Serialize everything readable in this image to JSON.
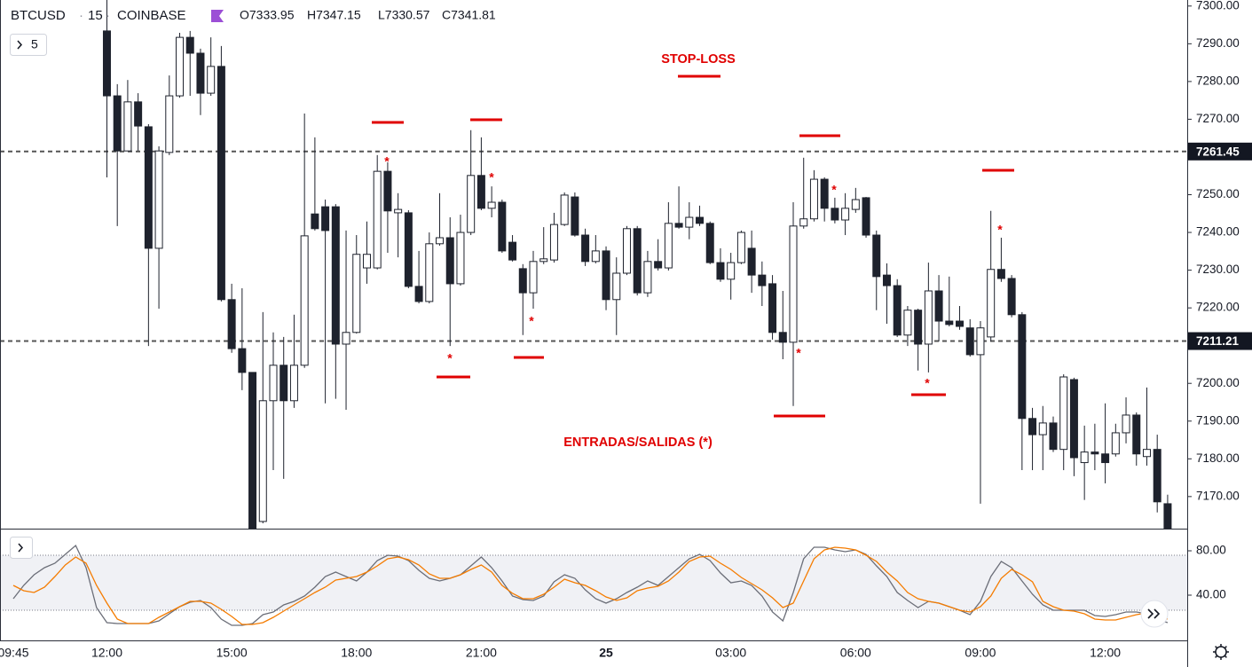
{
  "chart_data": [
    {
      "type": "candlestick",
      "symbol": "BTCUSD",
      "interval": "15",
      "exchange": "COINBASE",
      "ohlc_legend": [
        "O7333.95",
        "H7347.15",
        "L7330.57",
        "C7341.81"
      ],
      "indicator_count": "5",
      "annotations": [
        "STOP-LOSS",
        "ENTRADAS/SALIDAS (*)"
      ],
      "marker_symbol": "*",
      "up_color": "#ffffff",
      "down_color": "#1e222d",
      "annotation_color": "#e00000",
      "categories": [
        "09:45",
        null,
        null,
        null,
        null,
        null,
        null,
        null,
        null,
        "12:00",
        null,
        null,
        null,
        null,
        null,
        null,
        null,
        null,
        null,
        null,
        null,
        "15:00",
        null,
        null,
        null,
        null,
        null,
        null,
        null,
        null,
        null,
        null,
        null,
        "18:00",
        null,
        null,
        null,
        null,
        null,
        null,
        null,
        null,
        null,
        null,
        null,
        "21:00",
        null,
        null,
        null,
        null,
        null,
        null,
        null,
        null,
        null,
        null,
        null,
        "25",
        null,
        null,
        null,
        null,
        null,
        null,
        null,
        null,
        null,
        null,
        null,
        "03:00",
        null,
        null,
        null,
        null,
        null,
        null,
        null,
        null,
        null,
        null,
        null,
        "06:00",
        null,
        null,
        null,
        null,
        null,
        null,
        null,
        null,
        null,
        null,
        null,
        "09:00",
        null,
        null,
        null,
        null,
        null,
        null,
        null,
        null,
        null,
        null,
        null,
        "12:00",
        null,
        null,
        null,
        null,
        null,
        null
      ],
      "open": [
        null,
        null,
        null,
        null,
        null,
        null,
        null,
        null,
        null,
        7293.4,
        7276.2,
        7261.6,
        7274.6,
        7268.0,
        7235.8,
        7261.2,
        7276.2,
        7291.7,
        7287.5,
        7276.9,
        7284.0,
        7222.2,
        7209.2,
        7202.9,
        7163.4,
        7195.4,
        7204.8,
        7195.4,
        7204.8,
        7244.9,
        7246.8,
        7246.8,
        7210.4,
        7213.5,
        7230.6,
        7230.6,
        7256.2,
        7245.2,
        7245.2,
        7225.7,
        7221.7,
        7237.0,
        7238.6,
        7226.4,
        7240.0,
        7255.1,
        7246.4,
        7248.0,
        7237.4,
        7230.4,
        7224.0,
        7232.3,
        7232.7,
        7242.1,
        7249.4,
        7239.3,
        7232.3,
        7235.1,
        7222.2,
        7229.2,
        7241.0,
        7224.0,
        7232.3,
        7230.6,
        7242.4,
        7241.4,
        7244.0,
        7242.4,
        7232.0,
        7227.6,
        7232.0,
        7235.8,
        7228.7,
        7226.4,
        7213.5,
        7210.9,
        7241.7,
        7243.6,
        7254.1,
        7246.4,
        7243.3,
        7246.1,
        7249.2,
        7239.3,
        7228.7,
        7225.9,
        7212.8,
        7219.4,
        7210.4,
        7224.5,
        7216.5,
        7216.5,
        7214.7,
        7207.6,
        7212.3,
        7230.2,
        7227.8,
        7218.2,
        7190.7,
        7186.4,
        7189.5,
        7182.5,
        7201.0,
        7179.0,
        7181.8,
        7181.3,
        7181.3,
        7186.9,
        7191.6,
        7180.6,
        7182.5,
        7168.1
      ],
      "high": [
        null,
        null,
        null,
        null,
        null,
        null,
        null,
        null,
        null,
        7301.6,
        7279.3,
        7280.4,
        7276.9,
        7268.7,
        7262.8,
        7281.6,
        7292.9,
        7293.4,
        7288.7,
        7291.7,
        7289.4,
        7226.4,
        7225.2,
        7202.9,
        7218.9,
        7213.5,
        7212.3,
        7218.2,
        7271.5,
        7265.2,
        7248.7,
        7247.5,
        7240.5,
        7239.3,
        7242.9,
        7260.5,
        7258.6,
        7250.4,
        7245.9,
        7235.1,
        7240.0,
        7250.4,
        7244.0,
        7244.7,
        7267.1,
        7265.2,
        7252.2,
        7248.7,
        7239.3,
        7231.6,
        7235.1,
        7241.4,
        7245.2,
        7250.6,
        7250.6,
        7241.0,
        7239.3,
        7236.3,
        7233.4,
        7241.7,
        7241.7,
        7235.1,
        7238.2,
        7248.0,
        7252.2,
        7248.0,
        7247.1,
        7242.9,
        7235.8,
        7234.6,
        7240.5,
        7240.5,
        7232.3,
        7228.7,
        7224.5,
        7248.0,
        7259.8,
        7256.5,
        7254.6,
        7249.2,
        7250.4,
        7251.8,
        7249.4,
        7240.5,
        7231.8,
        7227.6,
        7220.5,
        7219.8,
        7232.0,
        7228.7,
        7228.3,
        7220.5,
        7217.0,
        7216.5,
        7245.7,
        7238.6,
        7228.7,
        7218.9,
        7193.5,
        7194.0,
        7191.2,
        7202.4,
        7201.5,
        7188.8,
        7189.3,
        7194.7,
        7189.3,
        7196.3,
        7192.3,
        7198.9,
        7186.4,
        7170.5
      ],
      "low": [
        null,
        null,
        null,
        null,
        null,
        null,
        null,
        null,
        null,
        7254.6,
        7241.7,
        7261.6,
        7261.6,
        7209.9,
        7219.8,
        7260.5,
        7275.7,
        7276.2,
        7271.1,
        7276.2,
        7221.7,
        7208.1,
        7198.2,
        7160.6,
        7162.9,
        7177.0,
        7174.7,
        7193.5,
        7204.1,
        7240.5,
        7194.7,
        7195.9,
        7193.0,
        7213.2,
        7226.4,
        7230.2,
        7234.6,
        7233.4,
        7225.2,
        7221.2,
        7221.2,
        7236.5,
        7209.9,
        7225.9,
        7239.3,
        7245.9,
        7244.0,
        7234.6,
        7232.3,
        7212.8,
        7219.8,
        7231.6,
        7232.0,
        7241.7,
        7238.9,
        7231.1,
        7231.8,
        7219.4,
        7212.8,
        7228.7,
        7223.3,
        7222.9,
        7229.9,
        7229.9,
        7241.0,
        7238.2,
        7241.7,
        7231.6,
        7226.9,
        7222.2,
        7231.6,
        7224.0,
        7220.5,
        7211.6,
        7206.4,
        7194.0,
        7241.0,
        7242.9,
        7242.9,
        7242.4,
        7239.3,
        7245.2,
        7238.6,
        7219.4,
        7215.8,
        7212.3,
        7209.9,
        7203.4,
        7202.9,
        7211.1,
        7215.1,
        7214.2,
        7207.1,
        7168.1,
        7211.1,
        7226.9,
        7217.5,
        7177.0,
        7177.0,
        7177.0,
        7181.8,
        7177.0,
        7175.4,
        7169.1,
        7177.0,
        7173.5,
        7180.6,
        7184.1,
        7178.2,
        7178.2,
        7165.8,
        7160.6
      ],
      "close": [
        null,
        null,
        null,
        null,
        null,
        null,
        null,
        null,
        null,
        7276.2,
        7261.6,
        7274.6,
        7268.2,
        7235.8,
        7261.6,
        7276.2,
        7291.7,
        7287.5,
        7276.9,
        7284.0,
        7222.2,
        7209.2,
        7202.9,
        7161.5,
        7195.4,
        7204.8,
        7195.4,
        7204.8,
        7239.1,
        7241.0,
        7240.5,
        7210.4,
        7213.5,
        7234.2,
        7234.2,
        7256.2,
        7245.7,
        7246.1,
        7225.7,
        7221.7,
        7237.0,
        7238.6,
        7226.4,
        7240.0,
        7255.1,
        7246.4,
        7248.0,
        7235.1,
        7232.7,
        7224.0,
        7232.3,
        7233.0,
        7242.1,
        7249.9,
        7239.3,
        7232.3,
        7235.1,
        7222.2,
        7229.2,
        7241.0,
        7224.0,
        7232.3,
        7230.6,
        7242.4,
        7241.4,
        7244.0,
        7242.4,
        7232.0,
        7227.6,
        7232.0,
        7240.0,
        7228.7,
        7225.9,
        7213.5,
        7210.9,
        7241.7,
        7243.6,
        7254.1,
        7246.4,
        7243.3,
        7246.4,
        7248.7,
        7239.3,
        7228.3,
        7225.9,
        7212.8,
        7219.4,
        7210.4,
        7224.5,
        7216.5,
        7215.6,
        7215.1,
        7207.6,
        7214.7,
        7230.2,
        7227.8,
        7218.2,
        7190.7,
        7186.4,
        7189.5,
        7182.5,
        7201.7,
        7180.3,
        7181.8,
        7181.3,
        7179.0,
        7186.9,
        7191.6,
        7181.3,
        7182.5,
        7168.6,
        7161.5
      ],
      "ylim": [
        7161.5,
        7301.6
      ],
      "yticks": [
        {
          "value": 7300,
          "label": "7300.00"
        },
        {
          "value": 7290,
          "label": "7290.00"
        },
        {
          "value": 7280,
          "label": "7280.00"
        },
        {
          "value": 7270,
          "label": "7270.00"
        },
        {
          "value": 7260,
          "label": "7260.00"
        },
        {
          "value": 7250,
          "label": "7250.00"
        },
        {
          "value": 7240,
          "label": "7240.00"
        },
        {
          "value": 7230,
          "label": "7230.00"
        },
        {
          "value": 7220,
          "label": "7220.00"
        },
        {
          "value": 7210,
          "label": "7210.00"
        },
        {
          "value": 7200,
          "label": "7200.00"
        },
        {
          "value": 7190,
          "label": "7190.00"
        },
        {
          "value": 7180,
          "label": "7180.00"
        },
        {
          "value": 7170,
          "label": "7170.00"
        }
      ],
      "hlines": [
        {
          "value": 7261.45,
          "label": "7261.45"
        },
        {
          "value": 7211.21,
          "label": "7211.21"
        }
      ]
    },
    {
      "type": "line",
      "series": [
        {
          "color": "#6b6e78",
          "values": [
            36.8,
            48.8,
            58.4,
            64.8,
            68.8,
            76.8,
            84.8,
            64.8,
            28.8,
            15.2,
            14.4,
            14.4,
            14.4,
            14.4,
            16.8,
            23.2,
            29.6,
            33.6,
            35.2,
            28.8,
            18.4,
            12.8,
            12.8,
            14.4,
            22.4,
            24.8,
            31.2,
            34.4,
            39.2,
            47.2,
            56.8,
            60.8,
            56.8,
            52.8,
            60.8,
            71.2,
            76.0,
            75.2,
            71.2,
            62.4,
            55.2,
            52.8,
            55.2,
            58.4,
            66.4,
            74.4,
            64.8,
            52.8,
            39.2,
            36.0,
            35.2,
            39.2,
            52.0,
            58.4,
            55.2,
            44.8,
            36.8,
            32.8,
            36.8,
            42.4,
            47.2,
            52.8,
            48.8,
            56.8,
            64.8,
            72.8,
            76.8,
            71.2,
            60.0,
            51.2,
            52.8,
            48.8,
            39.2,
            24.8,
            16.8,
            42.4,
            72.8,
            83.2,
            83.2,
            80.8,
            79.2,
            80.8,
            76.8,
            66.4,
            56.8,
            42.4,
            35.2,
            28.8,
            34.4,
            32.8,
            29.6,
            26.4,
            22.4,
            34.4,
            56.8,
            70.4,
            64.8,
            52.8,
            40.8,
            31.2,
            26.4,
            26.4,
            26.4,
            26.4,
            21.6,
            20.8,
            22.4,
            24.8,
            24.8,
            23.2,
            18.4,
            15.2
          ]
        },
        {
          "color": "#f57c00",
          "values": [
            48.8,
            44.0,
            42.4,
            47.2,
            56.8,
            67.2,
            74.4,
            68.8,
            48.8,
            32.8,
            18.4,
            14.4,
            14.4,
            14.4,
            20.0,
            24.8,
            29.6,
            34.4,
            34.4,
            32.8,
            27.2,
            20.8,
            13.6,
            13.6,
            15.2,
            20.0,
            25.6,
            31.2,
            36.8,
            42.4,
            47.2,
            53.6,
            55.2,
            56.8,
            60.8,
            66.4,
            72.8,
            74.4,
            72.0,
            67.2,
            59.2,
            55.2,
            55.2,
            58.4,
            63.2,
            67.2,
            60.8,
            48.8,
            41.6,
            36.8,
            36.8,
            40.8,
            47.2,
            54.4,
            51.2,
            48.8,
            44.0,
            38.4,
            35.2,
            37.6,
            44.0,
            46.4,
            48.0,
            52.8,
            60.8,
            70.4,
            74.4,
            75.2,
            68.8,
            63.2,
            56.0,
            50.4,
            44.8,
            37.6,
            28.8,
            32.8,
            52.8,
            72.8,
            80.8,
            83.2,
            82.4,
            80.8,
            76.0,
            70.4,
            60.8,
            52.8,
            42.4,
            36.8,
            34.4,
            32.8,
            29.6,
            26.4,
            24.8,
            29.6,
            39.2,
            55.2,
            63.2,
            58.4,
            52.0,
            34.4,
            29.6,
            26.4,
            25.6,
            23.2,
            18.4,
            17.6,
            17.6,
            20.0,
            22.4,
            24.0,
            21.6,
            18.4
          ]
        }
      ],
      "band": [
        26.4,
        76.0
      ],
      "band_color": "#f0f1f5",
      "ylim": [
        -0.8,
        99.2
      ],
      "yticks": [
        {
          "value": 80,
          "label": "80.00"
        },
        {
          "value": 40,
          "label": "40.00"
        }
      ]
    }
  ]
}
